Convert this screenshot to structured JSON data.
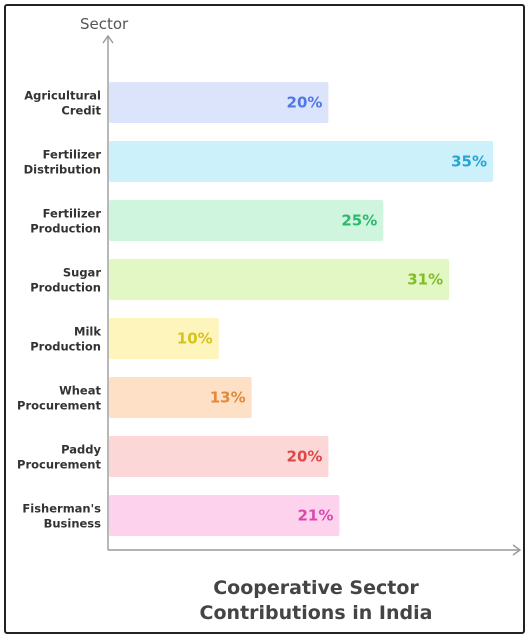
{
  "chart_data": {
    "type": "bar",
    "orientation": "horizontal",
    "title_lines": [
      "Cooperative Sector",
      "Contributions in India"
    ],
    "ylabel": "Sector",
    "xlabel": "",
    "xlim": [
      0,
      35
    ],
    "grid": false,
    "legend": "none",
    "categories": [
      [
        "Agricultural",
        "Credit"
      ],
      [
        "Fertilizer",
        "Distribution"
      ],
      [
        "Fertilizer",
        "Production"
      ],
      [
        "Sugar",
        "Production"
      ],
      [
        "Milk",
        "Production"
      ],
      [
        "Wheat",
        "Procurement"
      ],
      [
        "Paddy",
        "Procurement"
      ],
      [
        "Fisherman's",
        "Business"
      ]
    ],
    "values": [
      20,
      35,
      25,
      31,
      10,
      13,
      20,
      21
    ],
    "value_labels": [
      "20%",
      "35%",
      "25%",
      "31%",
      "10%",
      "13%",
      "20%",
      "21%"
    ],
    "bar_colors": [
      "#dbe4fb",
      "#cdf1fb",
      "#cff5df",
      "#e3f7c5",
      "#fdf5bb",
      "#fde0c5",
      "#fcd7d7",
      "#fcd2ec"
    ],
    "label_colors": [
      "#4f77e8",
      "#27a4d6",
      "#2dba6c",
      "#7fbf23",
      "#d8c21c",
      "#e3893a",
      "#e04747",
      "#d84aae"
    ]
  }
}
